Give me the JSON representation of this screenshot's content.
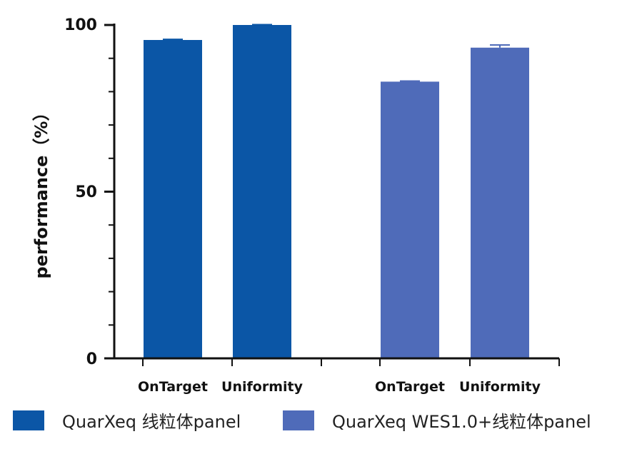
{
  "chart_data": {
    "type": "bar",
    "ylabel": "performance（%）",
    "ylim": [
      0,
      100
    ],
    "yticks": [
      "0",
      "50",
      "100"
    ],
    "categories": [
      "OnTarget",
      "Uniformity"
    ],
    "series": [
      {
        "name": "QuarXeq 线粒体panel",
        "color": "#0b56a6",
        "values": [
          95.5,
          100
        ],
        "errors": [
          0.2,
          0.1
        ]
      },
      {
        "name": "QuarXeq WES1.0+线粒体panel",
        "color": "#4f6bb9",
        "values": [
          83,
          93.2
        ],
        "errors": [
          0.2,
          0.8
        ]
      }
    ],
    "grid": false,
    "legend_position": "bottom"
  }
}
